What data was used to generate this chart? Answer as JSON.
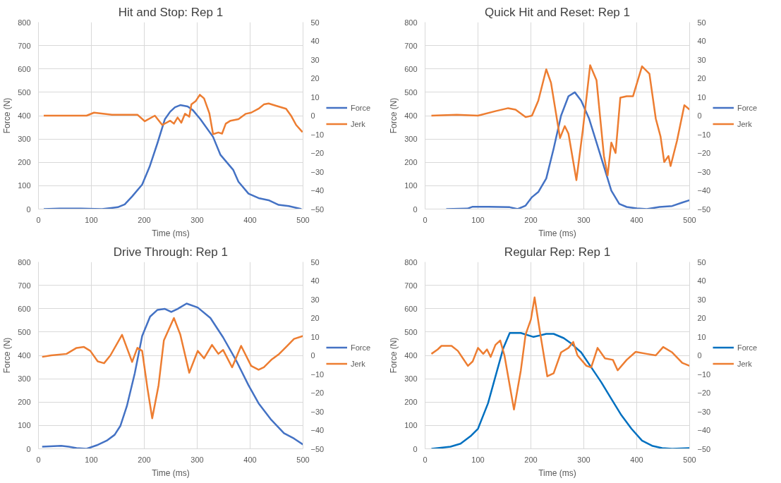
{
  "chart_data": [
    {
      "type": "line",
      "title": "Hit and Stop: Rep 1",
      "xlabel": "Time (ms)",
      "ylabel": "Force (N)",
      "xlim": [
        0,
        500
      ],
      "xticks": [
        0,
        100,
        200,
        300,
        400,
        500
      ],
      "ylim": [
        0,
        800
      ],
      "yticks": [
        0,
        100,
        200,
        300,
        400,
        500,
        600,
        700,
        800
      ],
      "y2lim": [
        -50,
        50
      ],
      "y2ticks": [
        -50,
        -40,
        -30,
        -20,
        -10,
        0,
        10,
        20,
        30,
        40,
        50
      ],
      "grid": true,
      "legend": "right",
      "line_style": "solid",
      "marker": "none",
      "series": [
        {
          "name": "Force",
          "color": "#4472c4",
          "x": [
            10,
            40,
            80,
            120,
            140,
            150,
            163,
            177,
            196,
            210,
            225,
            239,
            249,
            258,
            268,
            282,
            292,
            306,
            330,
            344,
            368,
            378,
            397,
            416,
            435,
            454,
            473,
            497
          ],
          "values": [
            0,
            2,
            2,
            0,
            5,
            8,
            20,
            54,
            105,
            181,
            283,
            385,
            417,
            436,
            445,
            439,
            423,
            385,
            309,
            232,
            168,
            117,
            66,
            47,
            38,
            18,
            13,
            0
          ]
        },
        {
          "name": "Jerk",
          "color": "#ed7d31",
          "axis": "y2",
          "x": [
            10,
            91,
            105,
            139,
            187,
            201,
            220,
            234,
            249,
            256,
            263,
            270,
            277,
            285,
            289,
            297,
            305,
            313,
            323,
            330,
            340,
            347,
            354,
            363,
            378,
            392,
            402,
            416,
            426,
            435,
            449,
            468,
            478,
            487,
            499
          ],
          "values": [
            0,
            0,
            1.6,
            0.5,
            0.5,
            -3,
            0,
            -5,
            -2.7,
            -4.3,
            -1,
            -3.8,
            1,
            -0.6,
            6,
            7.7,
            11.2,
            9.2,
            1.3,
            -9.9,
            -9,
            -9.6,
            -4.3,
            -2.7,
            -1.9,
            1,
            1.6,
            3.7,
            6,
            6.5,
            5.3,
            3.7,
            -0.3,
            -5,
            -8.8
          ]
        }
      ]
    },
    {
      "type": "line",
      "title": "Quick Hit and Reset: Rep 1",
      "xlabel": "Time (ms)",
      "ylabel": "Force (N)",
      "xlim": [
        0,
        500
      ],
      "xticks": [
        0,
        100,
        200,
        300,
        400,
        500
      ],
      "ylim": [
        0,
        800
      ],
      "yticks": [
        0,
        100,
        200,
        300,
        400,
        500,
        600,
        700,
        800
      ],
      "y2lim": [
        -50,
        50
      ],
      "y2ticks": [
        -50,
        -40,
        -30,
        -20,
        -10,
        0,
        10,
        20,
        30,
        40,
        50
      ],
      "grid": true,
      "legend": "right",
      "line_style": "solid",
      "marker": "none",
      "series": [
        {
          "name": "Force",
          "color": "#4472c4",
          "x": [
            40,
            80,
            90,
            120,
            160,
            175,
            190,
            202,
            214,
            229,
            243,
            257,
            271,
            283,
            295,
            310,
            324,
            338,
            352,
            367,
            381,
            400,
            419,
            443,
            467,
            486,
            500
          ],
          "values": [
            0,
            2,
            10,
            10,
            8,
            0,
            15,
            51,
            73,
            131,
            259,
            400,
            483,
            500,
            464,
            387,
            285,
            182,
            79,
            22,
            9,
            3,
            0,
            9,
            13,
            28,
            38
          ]
        },
        {
          "name": "Jerk",
          "color": "#ed7d31",
          "axis": "y2",
          "x": [
            12,
            60,
            100,
            133,
            157,
            171,
            190,
            202,
            214,
            229,
            238,
            255,
            264,
            271,
            286,
            298,
            312,
            324,
            338,
            345,
            352,
            360,
            369,
            381,
            393,
            410,
            424,
            436,
            445,
            452,
            460,
            464,
            476,
            490,
            500
          ],
          "values": [
            0,
            0.5,
            0,
            2.4,
            4,
            3.2,
            -0.8,
            0,
            8,
            24.8,
            17.6,
            -12,
            -5.6,
            -9.6,
            -34.5,
            -8,
            27,
            19,
            -21.6,
            -32,
            -14.4,
            -20,
            9.6,
            10.4,
            10.4,
            26.4,
            22.4,
            -1.6,
            -11.2,
            -24.8,
            -21.6,
            -27,
            -13.6,
            5.6,
            3.2
          ]
        }
      ]
    },
    {
      "type": "line",
      "title": "Drive Through: Rep 1",
      "xlabel": "Time (ms)",
      "ylabel": "Force (N)",
      "xlim": [
        0,
        500
      ],
      "xticks": [
        0,
        100,
        200,
        300,
        400,
        500
      ],
      "ylim": [
        0,
        800
      ],
      "yticks": [
        0,
        100,
        200,
        300,
        400,
        500,
        600,
        700,
        800
      ],
      "y2lim": [
        -50,
        50
      ],
      "y2ticks": [
        -50,
        -40,
        -30,
        -20,
        -10,
        0,
        10,
        20,
        30,
        40,
        50
      ],
      "grid": true,
      "legend": "right",
      "line_style": "solid",
      "marker": "none",
      "series": [
        {
          "name": "Force",
          "color": "#4472c4",
          "x": [
            7,
            43,
            57,
            72,
            91,
            110,
            129,
            144,
            155,
            167,
            182,
            196,
            211,
            225,
            239,
            251,
            263,
            280,
            301,
            325,
            349,
            373,
            397,
            416,
            440,
            464,
            483,
            500
          ],
          "values": [
            9,
            13,
            9,
            3,
            0,
            15,
            35,
            60,
            99,
            182,
            323,
            483,
            566,
            595,
            599,
            586,
            599,
            622,
            605,
            560,
            477,
            381,
            272,
            195,
            124,
            67,
            44,
            18
          ]
        },
        {
          "name": "Jerk",
          "color": "#ed7d31",
          "axis": "y2",
          "x": [
            7,
            24,
            53,
            72,
            86,
            98,
            112,
            124,
            136,
            158,
            177,
            187,
            196,
            206,
            215,
            227,
            237,
            256,
            268,
            285,
            301,
            313,
            328,
            340,
            349,
            366,
            383,
            402,
            416,
            426,
            440,
            455,
            469,
            483,
            500
          ],
          "values": [
            -0.8,
            0,
            0.8,
            4,
            4.5,
            2.4,
            -3.2,
            -4.2,
            0,
            11,
            -3.5,
            4,
            2.4,
            -17.6,
            -33.7,
            -16,
            8,
            20,
            11.2,
            -9.3,
            2.4,
            -1.6,
            5.6,
            0.8,
            2.9,
            -6.4,
            5.1,
            -5.6,
            -7.7,
            -6.4,
            -2.4,
            0.8,
            4.8,
            8.8,
            10.4
          ]
        }
      ]
    },
    {
      "type": "line",
      "title": "Regular Rep: Rep 1",
      "xlabel": "Time (ms)",
      "ylabel": "Force (N)",
      "xlim": [
        0,
        500
      ],
      "xticks": [
        0,
        100,
        200,
        300,
        400,
        500
      ],
      "ylim": [
        0,
        800
      ],
      "yticks": [
        0,
        100,
        200,
        300,
        400,
        500,
        600,
        700,
        800
      ],
      "y2lim": [
        -50,
        50
      ],
      "y2ticks": [
        -50,
        -40,
        -30,
        -20,
        -10,
        0,
        10,
        20,
        30,
        40,
        50
      ],
      "grid": true,
      "legend": "right",
      "line_style": "solid",
      "marker": "none",
      "series": [
        {
          "name": "Force",
          "color": "#0070c0",
          "x": [
            12,
            48,
            67,
            86,
            100,
            119,
            133,
            148,
            160,
            181,
            205,
            229,
            243,
            262,
            276,
            295,
            314,
            333,
            352,
            371,
            390,
            410,
            429,
            448,
            467,
            500
          ],
          "values": [
            0,
            9,
            22,
            54,
            86,
            195,
            310,
            432,
            496,
            496,
            479,
            492,
            492,
            474,
            451,
            413,
            349,
            285,
            214,
            144,
            86,
            35,
            13,
            3,
            0,
            3
          ]
        },
        {
          "name": "Jerk",
          "color": "#ed7d31",
          "axis": "y2",
          "x": [
            12,
            24,
            31,
            50,
            62,
            81,
            90,
            100,
            110,
            117,
            124,
            133,
            142,
            150,
            168,
            181,
            190,
            200,
            207,
            217,
            231,
            243,
            257,
            271,
            280,
            288,
            305,
            314,
            326,
            340,
            355,
            364,
            381,
            398,
            419,
            436,
            450,
            467,
            486,
            500
          ],
          "values": [
            0.8,
            3.2,
            5.1,
            5.1,
            2.4,
            -5.6,
            -3.2,
            4,
            0.8,
            3.2,
            -0.8,
            5.6,
            8,
            0,
            -29,
            -8,
            11.2,
            19.2,
            31,
            12.8,
            -11.2,
            -9.6,
            1.6,
            4,
            7.2,
            0,
            -5.6,
            -6.4,
            4,
            -1.6,
            -2.4,
            -8,
            -2.4,
            1.9,
            0.8,
            0,
            4.5,
            1.6,
            -4,
            -5.6
          ]
        }
      ]
    }
  ]
}
